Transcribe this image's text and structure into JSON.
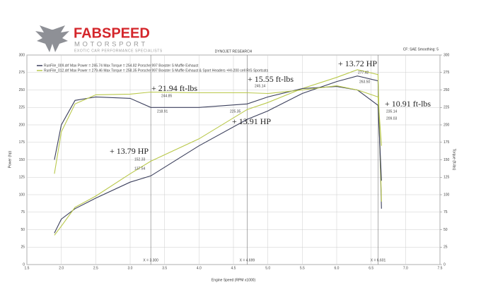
{
  "header": {
    "brand": "FABSPEED",
    "sub": "MOTORSPORT",
    "tagline": "EXOTIC CAR PERFORMANCE SPECIALISTS"
  },
  "chart_data": {
    "type": "line",
    "title": "DYNOJET RESEARCH",
    "note": "CF: SAE Smoothing: 5",
    "xlabel": "Engine Speed (RPM x1000)",
    "ylabel": "Power (hp)",
    "y2label": "Torque (ft-lbs)",
    "x": [
      1.9,
      2.0,
      2.2,
      2.5,
      3.0,
      3.3,
      4.0,
      4.7,
      5.0,
      5.5,
      6.0,
      6.3,
      6.6,
      6.65
    ],
    "series": [
      {
        "name": "RunFile_009.drf Max Power = 265.74   Max Torque = 254.82   Porsche 997 Boxster S Muffle Exhaust",
        "color": "#3b3f5c",
        "values": [
          45,
          65,
          80,
          95,
          118,
          127,
          170,
          208,
          220,
          245,
          262,
          270,
          263,
          80
        ]
      },
      {
        "name": "RunFile_012.drf Max Power = 279.46   Max Torque = 258.35   Porsche 997 Boxster S Muffle Exhaust & Sport Headers +HI-200 cell R/S Sportcats",
        "color": "#b9c84a",
        "values": [
          42,
          55,
          82,
          98,
          130,
          148,
          180,
          222,
          232,
          252,
          268,
          279,
          272,
          90
        ]
      },
      {
        "color": "#3b3f5c",
        "axis": "y2",
        "values": [
          150,
          200,
          235,
          240,
          238,
          225,
          225,
          230,
          240,
          252,
          255,
          250,
          228,
          120
        ]
      },
      {
        "color": "#b9c84a",
        "axis": "y2",
        "values": [
          130,
          190,
          230,
          243,
          244,
          247,
          246,
          246,
          245,
          250,
          256,
          250,
          240,
          170
        ]
      }
    ],
    "xlim": [
      1.5,
      7.5
    ],
    "xticks": [
      1.5,
      {
        "value": 2,
        "label": "2.0"
      },
      2.5,
      {
        "value": 3,
        "label": "3.0"
      },
      3.5,
      {
        "value": 4,
        "label": "4.0"
      },
      4.5,
      {
        "value": 5,
        "label": "5.0"
      },
      5.5,
      {
        "value": 6,
        "label": "6.0"
      },
      6.5,
      {
        "value": 7,
        "label": "7.0"
      },
      7.5
    ],
    "ylim": [
      0,
      300
    ],
    "yticks": [
      0,
      25,
      50,
      75,
      100,
      125,
      150,
      175,
      200,
      225,
      250,
      275,
      300
    ],
    "y2lim": [
      0,
      300
    ],
    "y2ticks": [
      0,
      25,
      50,
      75,
      100,
      125,
      150,
      175,
      200,
      225,
      250,
      275,
      300
    ],
    "grid": true,
    "cursors": [
      {
        "value": 3.3,
        "label": "X = 3.300"
      },
      {
        "value": 4.699,
        "label": "X = 4.699"
      },
      {
        "value": 6.601,
        "label": "X = 6.601"
      }
    ],
    "annotations": [
      "+ 13.72 HP",
      "+ 21.94 ft-lbs",
      "+ 15.55 ft-lbs",
      "+ 10.91 ft-lbs",
      "+ 13.91 HP",
      "+ 13.79 HP"
    ],
    "point_labels": [
      "244.85",
      "218.91",
      "152.33",
      "137.54",
      "245.14",
      "225.35",
      "277.42",
      "263.50",
      "235.14",
      "209.03"
    ]
  }
}
